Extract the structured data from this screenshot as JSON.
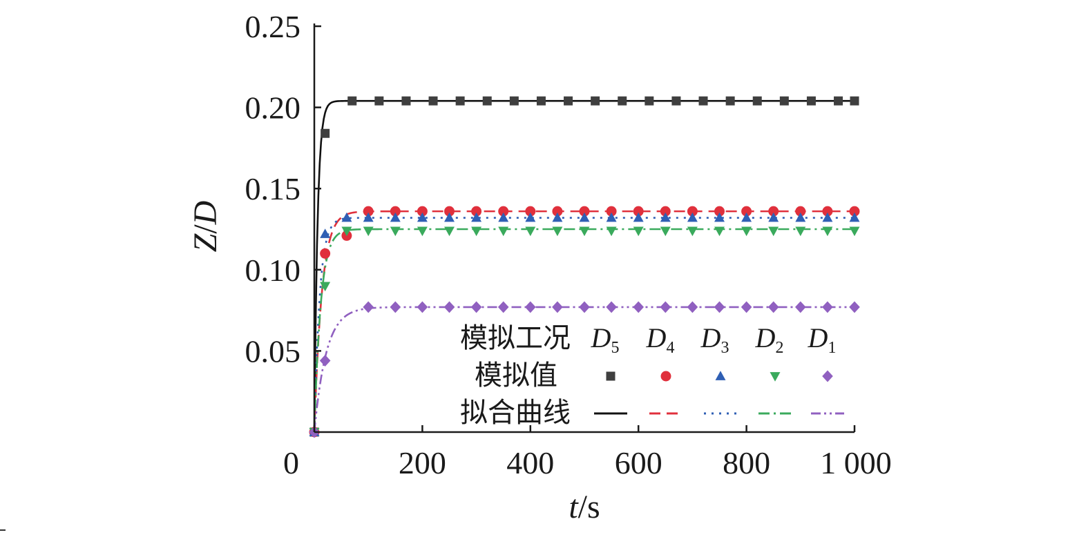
{
  "chart_data": {
    "type": "line",
    "xlabel": {
      "var": "t",
      "unit": "/s"
    },
    "ylabel": {
      "var1": "Z",
      "slash": "/",
      "var2": "D"
    },
    "xlim": [
      0,
      1000
    ],
    "ylim": [
      0,
      0.25
    ],
    "xticks": [
      0,
      200,
      400,
      600,
      800,
      1000
    ],
    "xtick_labels": [
      "0",
      "200",
      "400",
      "600",
      "800",
      "1 000"
    ],
    "yticks": [
      0.05,
      0.1,
      0.15,
      0.2,
      0.25
    ],
    "ytick_labels": [
      "0.05",
      "0.10",
      "0.15",
      "0.20",
      "0.25"
    ],
    "grid": false,
    "legend": {
      "placement": "bottom-right",
      "row_case": "模拟工况",
      "row_sim": "模拟值",
      "row_fit": "拟合曲线",
      "cases": [
        {
          "base": "D",
          "sub": "5"
        },
        {
          "base": "D",
          "sub": "4"
        },
        {
          "base": "D",
          "sub": "3"
        },
        {
          "base": "D",
          "sub": "2"
        },
        {
          "base": "D",
          "sub": "1"
        }
      ]
    },
    "series": [
      {
        "name": "D5",
        "color": "#3f3f3f",
        "marker": "square",
        "line_style": "solid",
        "x": [
          0,
          20,
          70,
          120,
          170,
          220,
          270,
          320,
          370,
          420,
          470,
          520,
          570,
          620,
          670,
          720,
          770,
          820,
          870,
          920,
          970,
          1000
        ],
        "y": [
          0.0,
          0.184,
          0.204,
          0.204,
          0.204,
          0.204,
          0.204,
          0.204,
          0.204,
          0.204,
          0.204,
          0.204,
          0.204,
          0.204,
          0.204,
          0.204,
          0.204,
          0.204,
          0.204,
          0.204,
          0.204,
          0.204
        ],
        "fit_plateau": 0.204,
        "fit_tau": 6
      },
      {
        "name": "D4",
        "color": "#e0303c",
        "marker": "circle",
        "line_style": "dashed",
        "x": [
          0,
          20,
          60,
          100,
          150,
          200,
          250,
          300,
          350,
          400,
          450,
          500,
          550,
          600,
          650,
          700,
          750,
          800,
          850,
          900,
          950,
          1000
        ],
        "y": [
          0.0,
          0.11,
          0.121,
          0.136,
          0.136,
          0.136,
          0.136,
          0.136,
          0.136,
          0.136,
          0.136,
          0.136,
          0.136,
          0.136,
          0.136,
          0.136,
          0.136,
          0.136,
          0.136,
          0.136,
          0.136,
          0.136
        ],
        "fit_plateau": 0.136,
        "fit_tau": 14
      },
      {
        "name": "D3",
        "color": "#2f5fb4",
        "marker": "triangle-up",
        "line_style": "dotted",
        "x": [
          0,
          20,
          60,
          100,
          150,
          200,
          250,
          300,
          350,
          400,
          450,
          500,
          550,
          600,
          650,
          700,
          750,
          800,
          850,
          900,
          950,
          1000
        ],
        "y": [
          0.0,
          0.122,
          0.132,
          0.132,
          0.132,
          0.132,
          0.132,
          0.132,
          0.132,
          0.132,
          0.132,
          0.132,
          0.132,
          0.132,
          0.132,
          0.132,
          0.132,
          0.132,
          0.132,
          0.132,
          0.132,
          0.132
        ],
        "fit_plateau": 0.132,
        "fit_tau": 10
      },
      {
        "name": "D2",
        "color": "#3aaa5c",
        "marker": "triangle-down",
        "line_style": "dashdot",
        "x": [
          0,
          20,
          60,
          100,
          150,
          200,
          250,
          300,
          350,
          400,
          450,
          500,
          550,
          600,
          650,
          700,
          750,
          800,
          850,
          900,
          950,
          1000
        ],
        "y": [
          0.0,
          0.09,
          0.124,
          0.124,
          0.124,
          0.124,
          0.124,
          0.124,
          0.124,
          0.124,
          0.124,
          0.124,
          0.124,
          0.124,
          0.124,
          0.124,
          0.124,
          0.124,
          0.124,
          0.124,
          0.124,
          0.124
        ],
        "fit_plateau": 0.125,
        "fit_tau": 12
      },
      {
        "name": "D1",
        "color": "#9060c0",
        "marker": "diamond",
        "line_style": "dashdotdot",
        "x": [
          0,
          20,
          100,
          150,
          200,
          250,
          300,
          350,
          400,
          450,
          500,
          550,
          600,
          650,
          700,
          750,
          800,
          850,
          900,
          950,
          1000
        ],
        "y": [
          0.0,
          0.044,
          0.077,
          0.077,
          0.077,
          0.077,
          0.077,
          0.077,
          0.077,
          0.077,
          0.077,
          0.077,
          0.077,
          0.077,
          0.077,
          0.077,
          0.077,
          0.077,
          0.077,
          0.077,
          0.077
        ],
        "fit_plateau": 0.077,
        "fit_tau": 22
      }
    ]
  }
}
